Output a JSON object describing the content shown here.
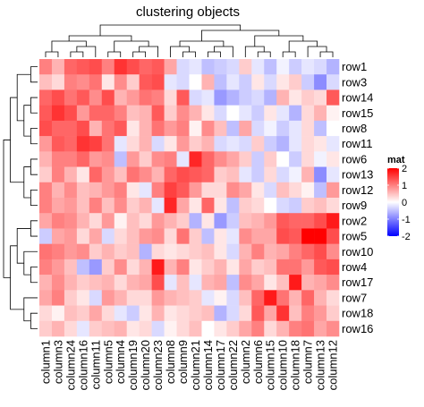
{
  "chart_data": {
    "type": "heatmap",
    "title": "clustering objects",
    "rows": [
      "row1",
      "row3",
      "row14",
      "row15",
      "row8",
      "row11",
      "row6",
      "row13",
      "row12",
      "row9",
      "row2",
      "row5",
      "row10",
      "row4",
      "row17",
      "row7",
      "row18",
      "row16"
    ],
    "columns": [
      "column1",
      "column3",
      "column24",
      "column16",
      "column11",
      "column5",
      "column4",
      "column19",
      "column20",
      "column23",
      "column8",
      "column9",
      "column21",
      "column14",
      "column17",
      "column22",
      "column2",
      "column6",
      "column15",
      "column10",
      "column18",
      "column7",
      "column13",
      "column12"
    ],
    "values": [
      [
        1.0,
        0.6,
        1.2,
        1.3,
        1.4,
        1.0,
        1.6,
        1.4,
        1.2,
        1.3,
        0.7,
        -0.3,
        -0.2,
        -0.5,
        -0.4,
        -0.3,
        0.4,
        -0.2,
        -0.5,
        -0.1,
        -0.4,
        -0.2,
        -0.3,
        -0.6
      ],
      [
        0.5,
        0.3,
        1.0,
        0.9,
        1.1,
        0.2,
        0.9,
        0.4,
        1.3,
        1.4,
        -0.2,
        -0.3,
        0.0,
        0.6,
        -0.5,
        -0.2,
        -0.4,
        0.2,
        -0.3,
        0.2,
        0.4,
        -0.4,
        -0.9,
        -0.3
      ],
      [
        1.2,
        1.4,
        1.1,
        1.3,
        0.9,
        1.4,
        0.6,
        0.8,
        1.1,
        1.0,
        0.3,
        1.3,
        -0.3,
        -0.2,
        -0.8,
        -0.6,
        -0.4,
        -0.3,
        -0.6,
        0.6,
        0.2,
        0.4,
        0.3,
        1.3
      ],
      [
        1.3,
        1.6,
        1.4,
        0.8,
        1.2,
        1.2,
        1.0,
        0.5,
        0.6,
        1.3,
        0.4,
        0.9,
        0.6,
        0.2,
        -0.3,
        0.0,
        -0.2,
        -0.4,
        0.2,
        -0.2,
        -0.6,
        0.3,
        0.6,
        0.1
      ],
      [
        1.4,
        1.2,
        1.2,
        1.4,
        0.6,
        1.1,
        1.3,
        0.2,
        0.6,
        1.1,
        0.8,
        1.0,
        0.1,
        0.9,
        0.5,
        -0.5,
        0.7,
        -0.3,
        -0.1,
        -0.4,
        -0.2,
        0.3,
        -0.5,
        0.0
      ],
      [
        0.8,
        1.3,
        1.2,
        1.6,
        1.5,
        1.1,
        -0.2,
        0.3,
        0.6,
        -0.3,
        0.2,
        0.8,
        0.4,
        0.6,
        -0.3,
        -0.2,
        -0.3,
        0.4,
        -0.4,
        -0.6,
        -0.2,
        0.3,
        0.2,
        -0.2
      ],
      [
        0.6,
        1.0,
        1.0,
        1.2,
        0.8,
        0.9,
        -0.5,
        0.8,
        0.4,
        0.9,
        1.0,
        -0.2,
        1.7,
        1.2,
        0.9,
        0.7,
        0.4,
        -0.4,
        0.4,
        0.0,
        -0.4,
        0.3,
        -0.1,
        0.2
      ],
      [
        0.4,
        1.0,
        0.6,
        0.2,
        1.2,
        0.8,
        0.5,
        1.1,
        0.9,
        0.6,
        1.2,
        1.4,
        1.3,
        1.2,
        0.4,
        0.5,
        -0.2,
        -0.4,
        0.3,
        -0.3,
        -0.1,
        0.6,
        -0.9,
        -0.2
      ],
      [
        1.0,
        0.6,
        0.9,
        0.5,
        0.6,
        0.8,
        1.0,
        0.2,
        -0.2,
        1.0,
        1.5,
        1.3,
        0.8,
        0.3,
        0.3,
        0.9,
        0.7,
        0.2,
        -0.3,
        0.5,
        0.3,
        0.1,
        -0.5,
        0.8
      ],
      [
        1.0,
        0.7,
        0.8,
        0.5,
        1.0,
        0.5,
        0.9,
        0.4,
        0.6,
        -0.2,
        1.7,
        0.7,
        0.2,
        1.2,
        0.2,
        -0.5,
        0.4,
        0.3,
        0.0,
        -0.3,
        -0.4,
        0.4,
        0.5,
        0.3
      ],
      [
        0.7,
        1.0,
        0.9,
        0.6,
        0.3,
        0.8,
        0.1,
        0.5,
        0.3,
        0.8,
        0.6,
        0.4,
        -0.6,
        0.2,
        -0.8,
        -0.4,
        0.5,
        0.6,
        0.8,
        1.3,
        1.2,
        1.2,
        1.4,
        1.8
      ],
      [
        -0.4,
        0.7,
        0.8,
        0.3,
        0.7,
        -0.3,
        0.3,
        0.5,
        0.8,
        0.9,
        0.3,
        1.1,
        0.4,
        -0.5,
        0.2,
        -0.2,
        0.9,
        0.7,
        0.7,
        1.4,
        1.3,
        2.0,
        2.0,
        1.4
      ],
      [
        1.1,
        1.0,
        0.8,
        0.9,
        0.4,
        0.6,
        0.4,
        0.5,
        -0.6,
        0.3,
        0.2,
        0.3,
        0.4,
        0.5,
        0.2,
        -0.3,
        0.6,
        1.0,
        0.6,
        0.7,
        1.0,
        1.2,
        1.4,
        0.9
      ],
      [
        1.0,
        0.8,
        0.5,
        -0.5,
        -0.8,
        0.4,
        0.9,
        0.3,
        0.6,
        1.8,
        0.6,
        1.0,
        0.2,
        0.4,
        0.6,
        0.2,
        0.7,
        0.4,
        0.5,
        1.1,
        1.1,
        0.8,
        1.3,
        1.4
      ],
      [
        0.6,
        0.9,
        0.6,
        0.4,
        0.5,
        0.6,
        0.3,
        0.6,
        0.7,
        1.4,
        -0.2,
        0.5,
        -0.2,
        0.6,
        0.7,
        -0.5,
        0.9,
        0.7,
        0.2,
        0.5,
        1.8,
        0.6,
        0.7,
        0.9
      ],
      [
        0.7,
        1.0,
        0.4,
        0.2,
        -0.3,
        0.8,
        0.6,
        0.3,
        0.3,
        0.8,
        0.6,
        0.5,
        0.4,
        -0.2,
        0.1,
        -0.3,
        0.5,
        1.2,
        1.8,
        1.1,
        0.6,
        1.2,
        0.6,
        0.3
      ],
      [
        0.3,
        0.1,
        0.5,
        0.4,
        0.7,
        0.3,
        -0.2,
        -0.4,
        0.2,
        0.6,
        0.2,
        0.3,
        0.4,
        0.5,
        -0.6,
        -0.3,
        0.3,
        1.3,
        0.7,
        1.6,
        0.5,
        1.0,
        0.8,
        0.4
      ],
      [
        0.4,
        0.6,
        0.3,
        -0.2,
        0.4,
        0.5,
        0.6,
        0.2,
        0.3,
        -0.3,
        0.1,
        0.3,
        0.5,
        0.0,
        0.2,
        0.4,
        0.7,
        1.0,
        0.3,
        0.6,
        1.0,
        1.1,
        0.7,
        0.9
      ]
    ],
    "legend": {
      "title": "mat",
      "ticks": [
        2,
        1,
        0,
        -1,
        -2
      ],
      "placement": "right",
      "colors": {
        "low": "#0000ff",
        "mid": "#ffffff",
        "high": "#ff0000"
      }
    }
  }
}
